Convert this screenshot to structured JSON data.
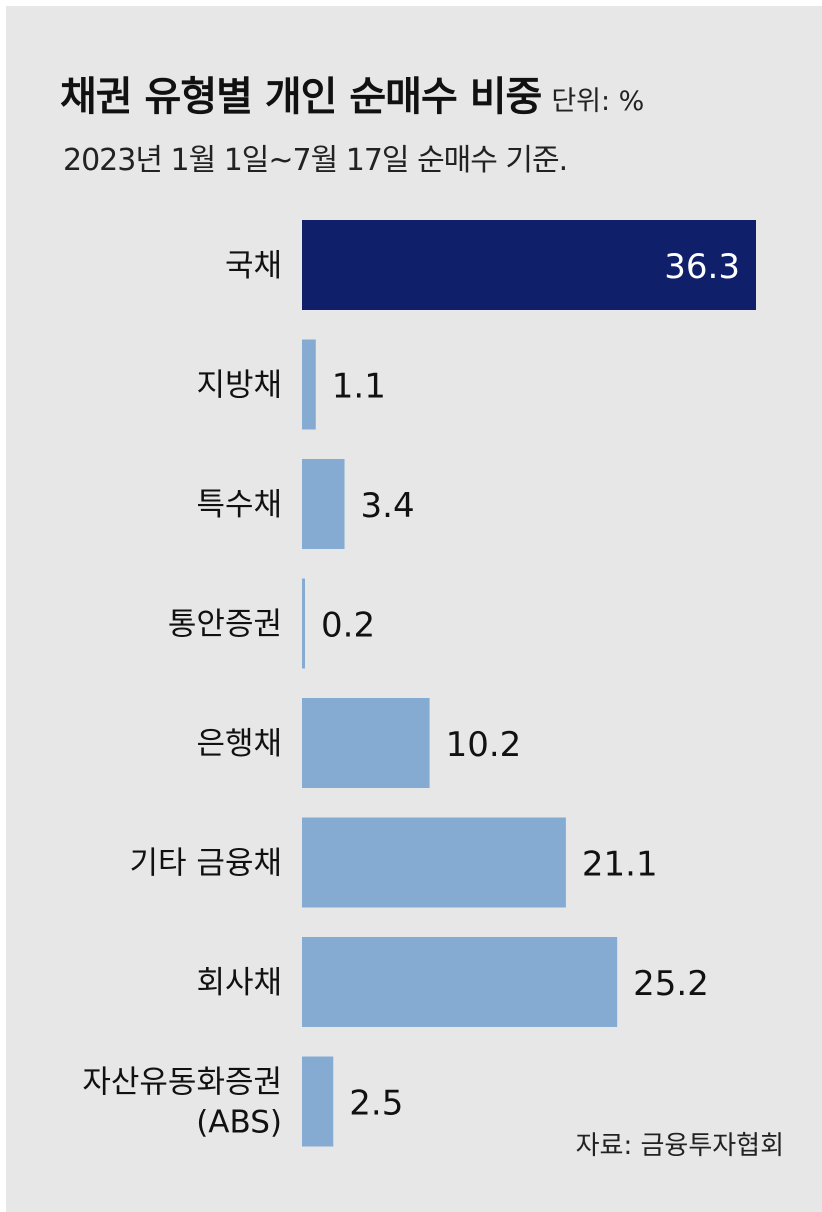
{
  "header": {
    "title": "채권 유형별 개인 순매수 비중",
    "unit": "단위: %",
    "subtitle": "2023년 1월 1일~7월 17일 순매수 기준."
  },
  "footer": {
    "source": "자료: 금융투자협회"
  },
  "colors": {
    "highlight": "#0f1f6a",
    "bar": "#86abd3",
    "highlight_label": "#ffffff",
    "label": "#111111"
  },
  "chart_data": {
    "type": "bar",
    "orientation": "horizontal",
    "title": "채권 유형별 개인 순매수 비중",
    "unit": "%",
    "categories": [
      "국채",
      "지방채",
      "특수채",
      "통안증권",
      "은행채",
      "기타 금융채",
      "회사채",
      "자산유동화증권\n(ABS)"
    ],
    "values": [
      36.3,
      1.1,
      3.4,
      0.2,
      10.2,
      21.1,
      25.2,
      2.5
    ],
    "value_labels": [
      "36.3",
      "1.1",
      "3.4",
      "0.2",
      "10.2",
      "21.1",
      "25.2",
      "2.5"
    ],
    "highlight_index": 0,
    "xlim": [
      0,
      36.3
    ],
    "grid": false,
    "legend": "none"
  }
}
